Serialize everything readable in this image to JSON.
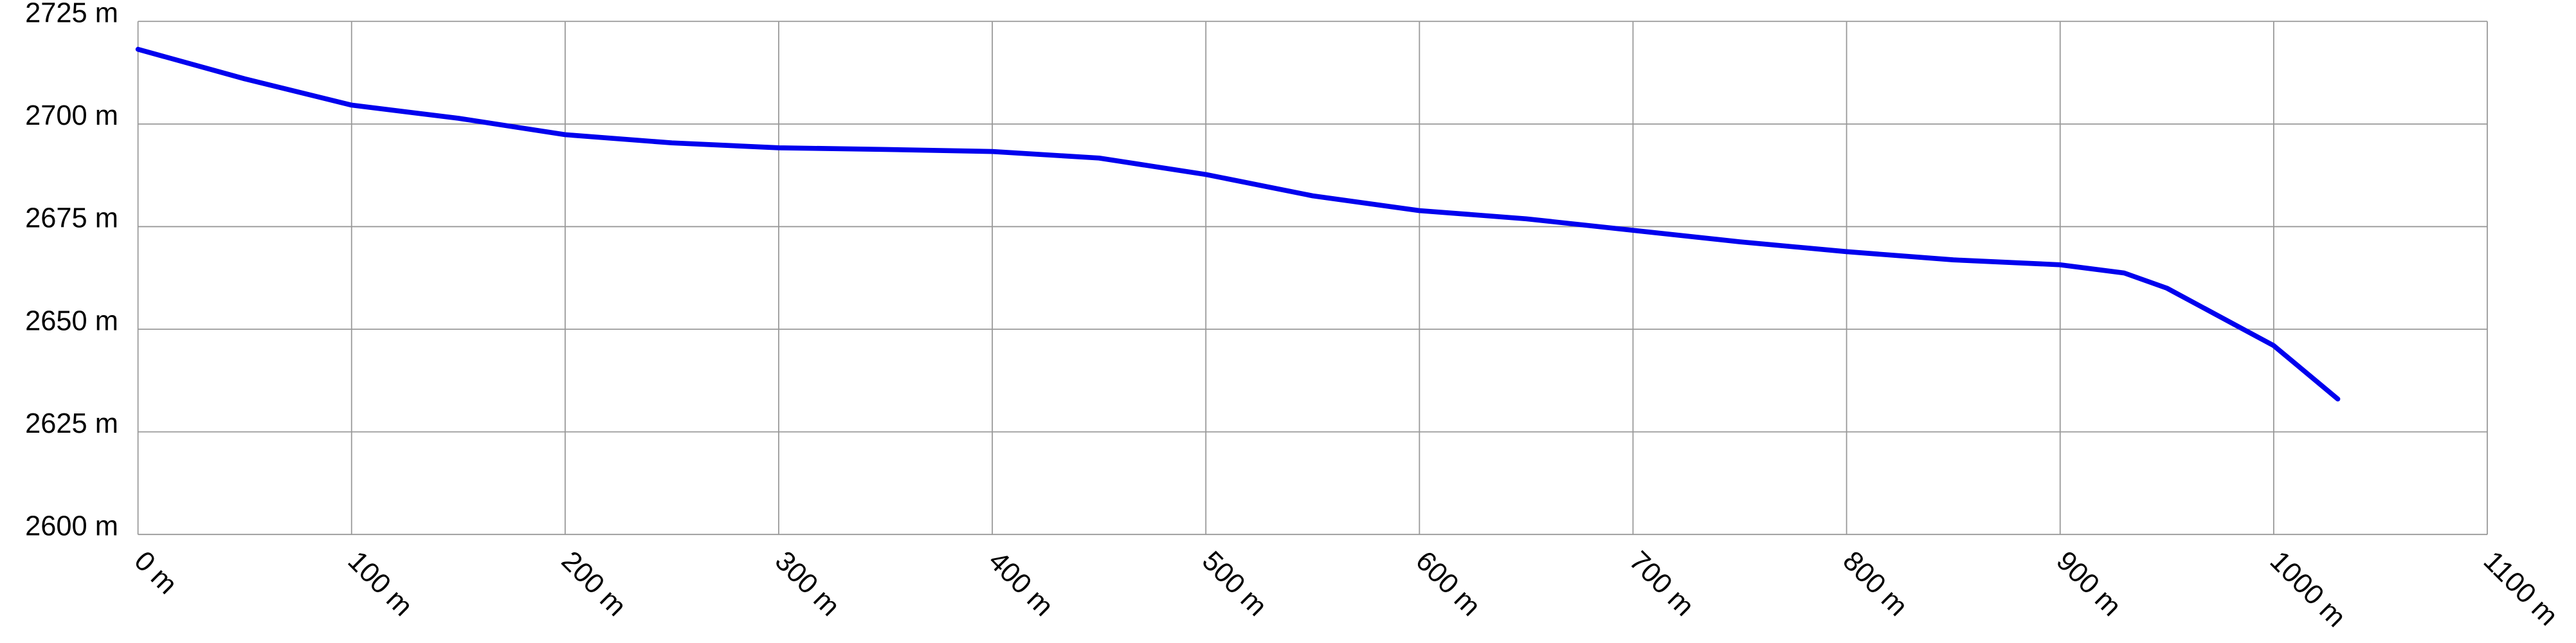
{
  "chart_data": {
    "type": "line",
    "x": [
      0,
      50,
      100,
      150,
      200,
      250,
      300,
      350,
      400,
      450,
      500,
      550,
      600,
      650,
      700,
      750,
      800,
      850,
      900,
      930,
      950,
      1000,
      1030
    ],
    "values": [
      2718.2,
      2711,
      2704.6,
      2701.4,
      2697.4,
      2695.4,
      2694.2,
      2693.8,
      2693.3,
      2691.7,
      2687.7,
      2682.5,
      2678.9,
      2676.9,
      2674.1,
      2671.3,
      2668.9,
      2666.9,
      2665.7,
      2663.7,
      2660,
      2646,
      2633
    ],
    "color": "#0000ee",
    "xlim": [
      0,
      1100
    ],
    "xticks": [
      {
        "value": 0,
        "label": "0 m"
      },
      {
        "value": 100,
        "label": "100 m"
      },
      {
        "value": 200,
        "label": "200 m"
      },
      {
        "value": 300,
        "label": "300 m"
      },
      {
        "value": 400,
        "label": "400 m"
      },
      {
        "value": 500,
        "label": "500 m"
      },
      {
        "value": 600,
        "label": "600 m"
      },
      {
        "value": 700,
        "label": "700 m"
      },
      {
        "value": 800,
        "label": "800 m"
      },
      {
        "value": 900,
        "label": "900 m"
      },
      {
        "value": 1000,
        "label": "1000 m"
      },
      {
        "value": 1100,
        "label": "1100 m"
      }
    ],
    "ylim": [
      2600,
      2725
    ],
    "yticks": [
      {
        "value": 2600,
        "label": "2600 m"
      },
      {
        "value": 2625,
        "label": "2625 m"
      },
      {
        "value": 2650,
        "label": "2650 m"
      },
      {
        "value": 2675,
        "label": "2675 m"
      },
      {
        "value": 2700,
        "label": "2700 m"
      },
      {
        "value": 2725,
        "label": "2725 m"
      }
    ],
    "grid": true
  }
}
